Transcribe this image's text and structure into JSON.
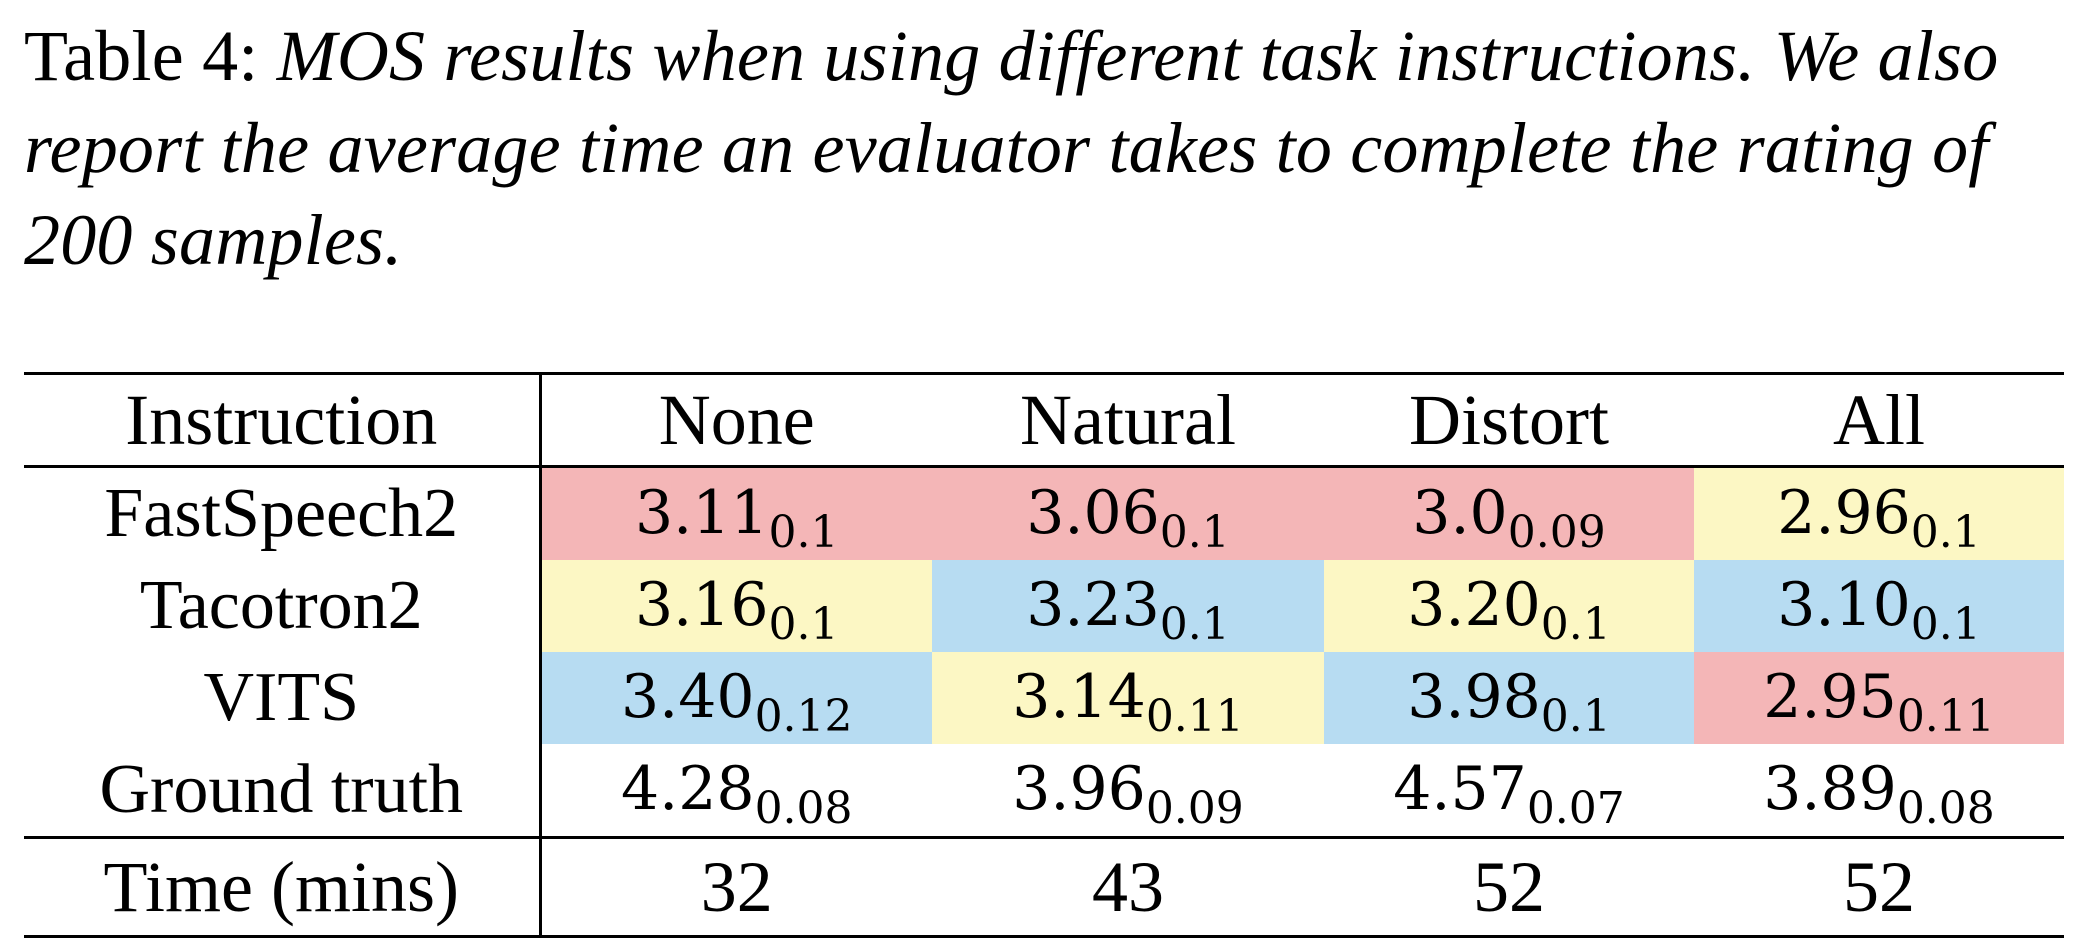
{
  "caption": {
    "label": "Table 4:",
    "text": "MOS results when using different task instructions. We also report the average time an evaluator takes to complete the rating of 200 samples."
  },
  "table": {
    "header": [
      "Instruction",
      "None",
      "Natural",
      "Distort",
      "All"
    ],
    "rows": [
      {
        "name": "FastSpeech2",
        "cells": [
          {
            "value": "3.11",
            "sub": "0.1",
            "color": "#f4b6b7"
          },
          {
            "value": "3.06",
            "sub": "0.1",
            "color": "#f4b6b7"
          },
          {
            "value": "3.0",
            "sub": "0.09",
            "color": "#f4b6b7"
          },
          {
            "value": "2.96",
            "sub": "0.1",
            "color": "#fcf7c4"
          }
        ]
      },
      {
        "name": "Tacotron2",
        "cells": [
          {
            "value": "3.16",
            "sub": "0.1",
            "color": "#fcf7c4"
          },
          {
            "value": "3.23",
            "sub": "0.1",
            "color": "#b7dcf2"
          },
          {
            "value": "3.20",
            "sub": "0.1",
            "color": "#fcf7c4"
          },
          {
            "value": "3.10",
            "sub": "0.1",
            "color": "#b7dcf2"
          }
        ]
      },
      {
        "name": "VITS",
        "cells": [
          {
            "value": "3.40",
            "sub": "0.12",
            "color": "#b7dcf2"
          },
          {
            "value": "3.14",
            "sub": "0.11",
            "color": "#fcf7c4"
          },
          {
            "value": "3.98",
            "sub": "0.1",
            "color": "#b7dcf2"
          },
          {
            "value": "2.95",
            "sub": "0.11",
            "color": "#f4b6b7"
          }
        ]
      },
      {
        "name": "Ground truth",
        "cells": [
          {
            "value": "4.28",
            "sub": "0.08",
            "color": "#ffffff"
          },
          {
            "value": "3.96",
            "sub": "0.09",
            "color": "#ffffff"
          },
          {
            "value": "4.57",
            "sub": "0.07",
            "color": "#ffffff"
          },
          {
            "value": "3.89",
            "sub": "0.08",
            "color": "#ffffff"
          }
        ]
      }
    ],
    "time_row": {
      "name": "Time (mins)",
      "values": [
        "32",
        "43",
        "52",
        "52"
      ]
    }
  }
}
